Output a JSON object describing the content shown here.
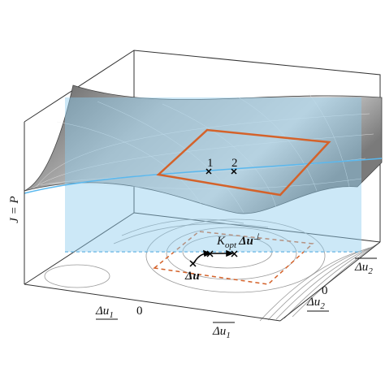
{
  "axis_labels": {
    "z": "J = P",
    "u1_low": {
      "base": "Δu",
      "sub": "1"
    },
    "u1_zero": "0",
    "u1_high": {
      "base": "Δu",
      "sub": "1"
    },
    "u2_high": {
      "base": "Δu",
      "sub": "2"
    },
    "u2_zero": "0",
    "u2_low": {
      "base": "Δu",
      "sub": "2"
    }
  },
  "points": [
    "1",
    "2"
  ],
  "annotations": {
    "kopt": {
      "base": "K",
      "sub": "opt",
      "mid": "Δu",
      "sup": "⊥"
    },
    "du": "Δu"
  }
}
